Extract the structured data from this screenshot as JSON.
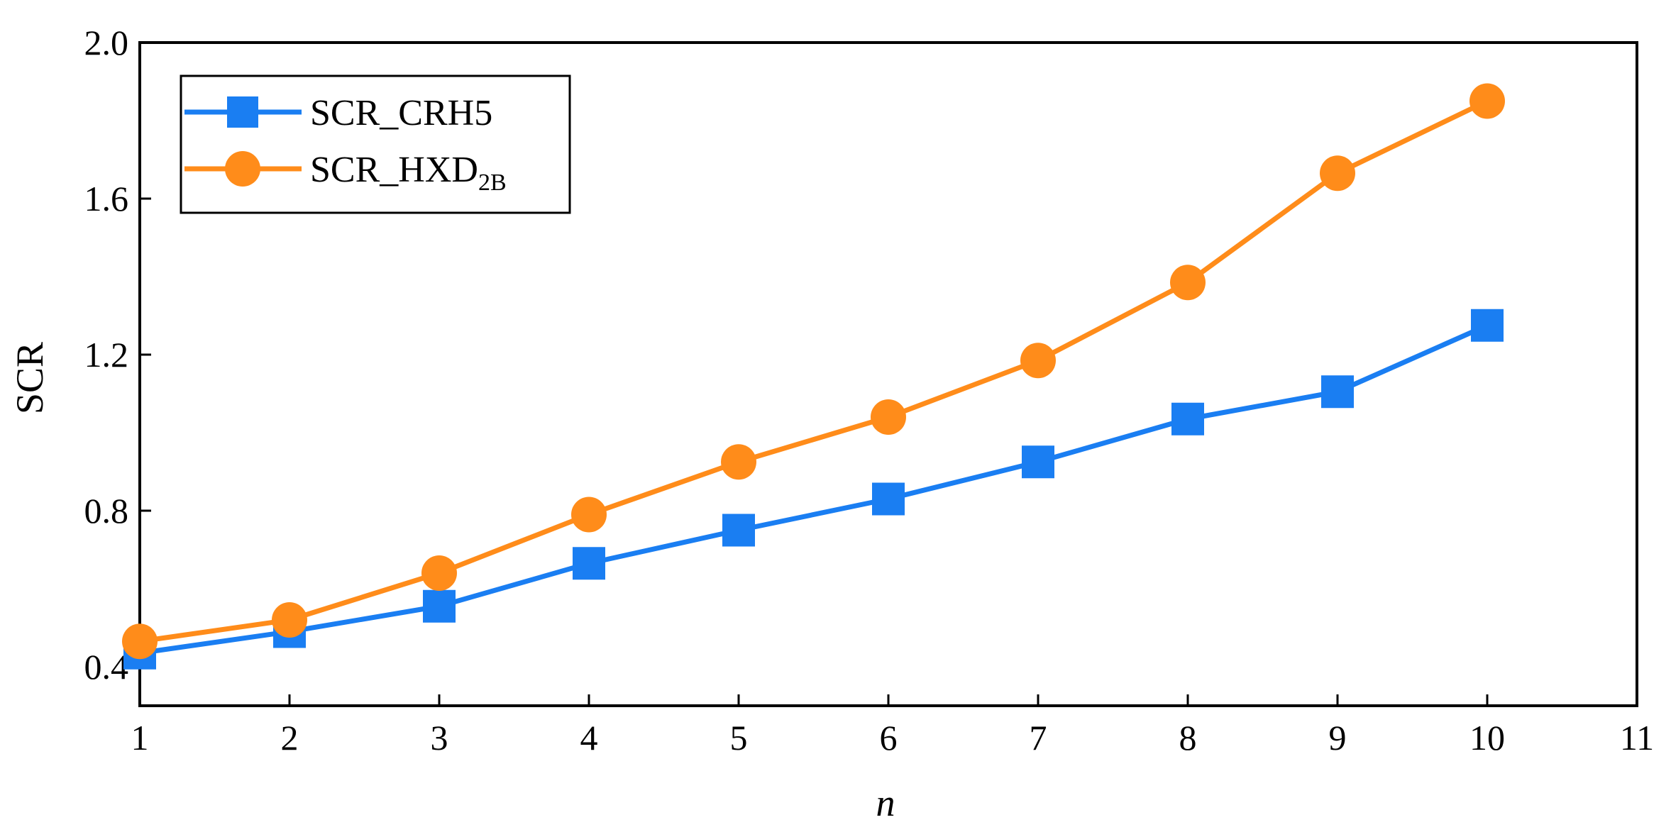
{
  "chart_data": {
    "type": "line",
    "xlabel": "n",
    "ylabel": "SCR",
    "xlim": [
      1,
      11
    ],
    "ylim": [
      0.3,
      2.0
    ],
    "xticks": [
      1,
      2,
      3,
      4,
      5,
      6,
      7,
      8,
      9,
      10,
      11
    ],
    "yticks": [
      0.4,
      0.8,
      1.2,
      1.6,
      2.0
    ],
    "ytick_labels": [
      "0.4",
      "0.8",
      "1.2",
      "1.6",
      "2.0"
    ],
    "grid": false,
    "legend_position": "top-left",
    "x": [
      1,
      2,
      3,
      4,
      5,
      6,
      7,
      8,
      9,
      10
    ],
    "series": [
      {
        "name": "SCR_CRH5",
        "color": "#1a7ef2",
        "marker": "square",
        "values": [
          0.435,
          0.49,
          0.555,
          0.665,
          0.75,
          0.83,
          0.925,
          1.035,
          1.105,
          1.275
        ]
      },
      {
        "name": "SCR_HXD",
        "name_subscript": "2B",
        "color": "#ff8c1a",
        "marker": "circle",
        "values": [
          0.465,
          0.52,
          0.64,
          0.79,
          0.925,
          1.04,
          1.185,
          1.385,
          1.665,
          1.85
        ]
      }
    ]
  }
}
